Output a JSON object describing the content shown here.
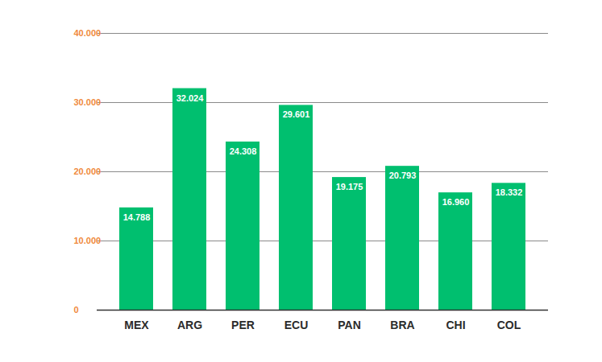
{
  "chart_data": {
    "type": "bar",
    "categories": [
      "MEX",
      "ARG",
      "PER",
      "ECU",
      "PAN",
      "BRA",
      "CHI",
      "COL"
    ],
    "values": [
      14788,
      32024,
      24308,
      29601,
      19175,
      20793,
      16960,
      18332
    ],
    "value_labels": [
      "14.788",
      "32.024",
      "24.308",
      "29.601",
      "19.175",
      "20.793",
      "16.960",
      "18.332"
    ],
    "color": "#00bf6f",
    "ylim": [
      0,
      40000
    ],
    "yticks": [
      0,
      {
        "value": 10000,
        "label": "10.000"
      },
      {
        "value": 20000,
        "label": "20.000"
      },
      {
        "value": 30000,
        "label": "30.000"
      },
      {
        "value": 40000,
        "label": "40.000"
      }
    ],
    "grid": true,
    "data_labels": true
  }
}
